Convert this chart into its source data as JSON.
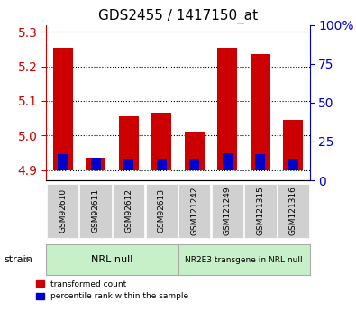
{
  "title": "GDS2455 / 1417150_at",
  "samples": [
    "GSM92610",
    "GSM92611",
    "GSM92612",
    "GSM92613",
    "GSM121242",
    "GSM121249",
    "GSM121315",
    "GSM121316"
  ],
  "red_values": [
    5.255,
    4.935,
    5.055,
    5.065,
    5.01,
    5.255,
    5.235,
    5.045
  ],
  "blue_values": [
    4.945,
    4.935,
    4.932,
    4.932,
    4.932,
    4.948,
    4.945,
    4.932
  ],
  "baseline": 4.9,
  "ylim_left": [
    4.87,
    5.32
  ],
  "ylim_right": [
    0,
    100
  ],
  "yticks_left": [
    4.9,
    5.0,
    5.1,
    5.2,
    5.3
  ],
  "yticks_right": [
    0,
    25,
    50,
    75,
    100
  ],
  "ytick_labels_right": [
    "0",
    "25",
    "50",
    "75",
    "100%"
  ],
  "group1_label": "NRL null",
  "group2_label": "NR2E3 transgene in NRL null",
  "group_bg_color": "#c8f0c8",
  "bar_width": 0.6,
  "red_color": "#cc0000",
  "blue_color": "#0000cc",
  "left_tick_color": "#cc0000",
  "right_tick_color": "#0000cc",
  "legend_red": "transformed count",
  "legend_blue": "percentile rank within the sample",
  "strain_label": "strain",
  "ticklabel_bg": "#d0d0d0"
}
